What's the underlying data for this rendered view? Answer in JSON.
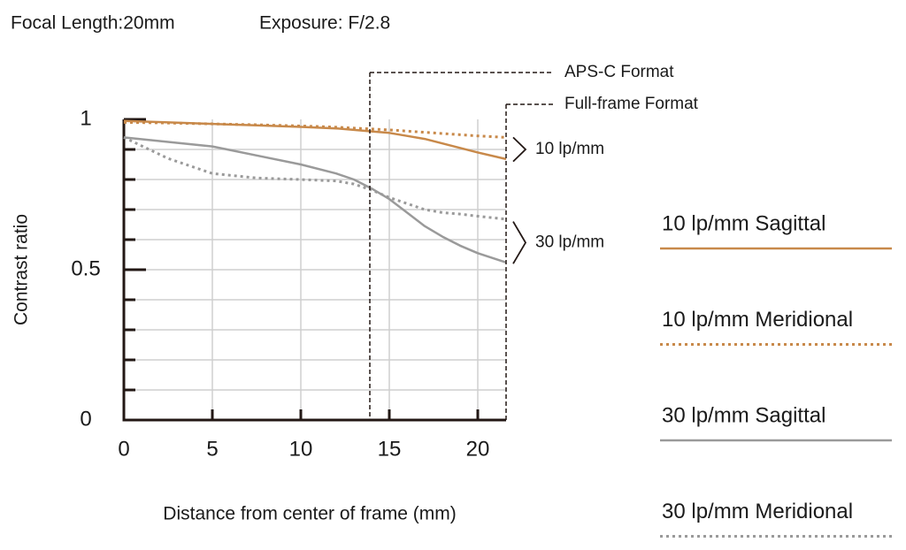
{
  "chart_data": {
    "type": "line",
    "title_parts": [
      "Focal Length:20mm",
      "Exposure: F/2.8"
    ],
    "x_label": "Distance from center of frame (mm)",
    "y_label": "Contrast ratio",
    "x": [
      0,
      2.5,
      5,
      7.5,
      10,
      12,
      13,
      14,
      15,
      16,
      17,
      18,
      19,
      20,
      21.6
    ],
    "series": [
      {
        "name": "10 lp/mm Sagittal",
        "color": "#c8894a",
        "dash": "solid",
        "values": [
          0.995,
          0.99,
          0.985,
          0.98,
          0.975,
          0.97,
          0.965,
          0.96,
          0.955,
          0.945,
          0.935,
          0.92,
          0.905,
          0.89,
          0.868
        ]
      },
      {
        "name": "10 lp/mm Meridional",
        "color": "#c8894a",
        "dash": "dotted",
        "values": [
          0.99,
          0.988,
          0.985,
          0.982,
          0.978,
          0.974,
          0.971,
          0.968,
          0.965,
          0.961,
          0.957,
          0.953,
          0.949,
          0.945,
          0.94
        ]
      },
      {
        "name": "30 lp/mm Sagittal",
        "color": "#9a9a9a",
        "dash": "solid",
        "values": [
          0.94,
          0.925,
          0.91,
          0.88,
          0.85,
          0.82,
          0.8,
          0.77,
          0.735,
          0.69,
          0.645,
          0.61,
          0.58,
          0.555,
          0.524
        ]
      },
      {
        "name": "30 lp/mm Meridional",
        "color": "#9a9a9a",
        "dash": "dotted",
        "values": [
          0.94,
          0.87,
          0.82,
          0.805,
          0.8,
          0.795,
          0.785,
          0.765,
          0.74,
          0.72,
          0.7,
          0.69,
          0.685,
          0.678,
          0.668
        ]
      }
    ],
    "xlim": [
      0,
      21.6
    ],
    "ylim": [
      0,
      1
    ],
    "xticks": [
      0,
      5,
      10,
      15,
      20
    ],
    "yticks": [
      0,
      0.5,
      1
    ],
    "yminor_ticks": [
      0.1,
      0.2,
      0.3,
      0.4,
      0.6,
      0.7,
      0.8,
      0.9
    ],
    "grid": true,
    "format_markers": [
      {
        "label": "APS-C Format",
        "x": 13.9
      },
      {
        "label": "Full-frame Format",
        "x": 21.6
      }
    ],
    "group_labels": [
      {
        "label": "10 lp/mm",
        "from": 0.94,
        "to": 0.86
      },
      {
        "label": "30 lp/mm",
        "from": 0.66,
        "to": 0.52
      }
    ]
  }
}
